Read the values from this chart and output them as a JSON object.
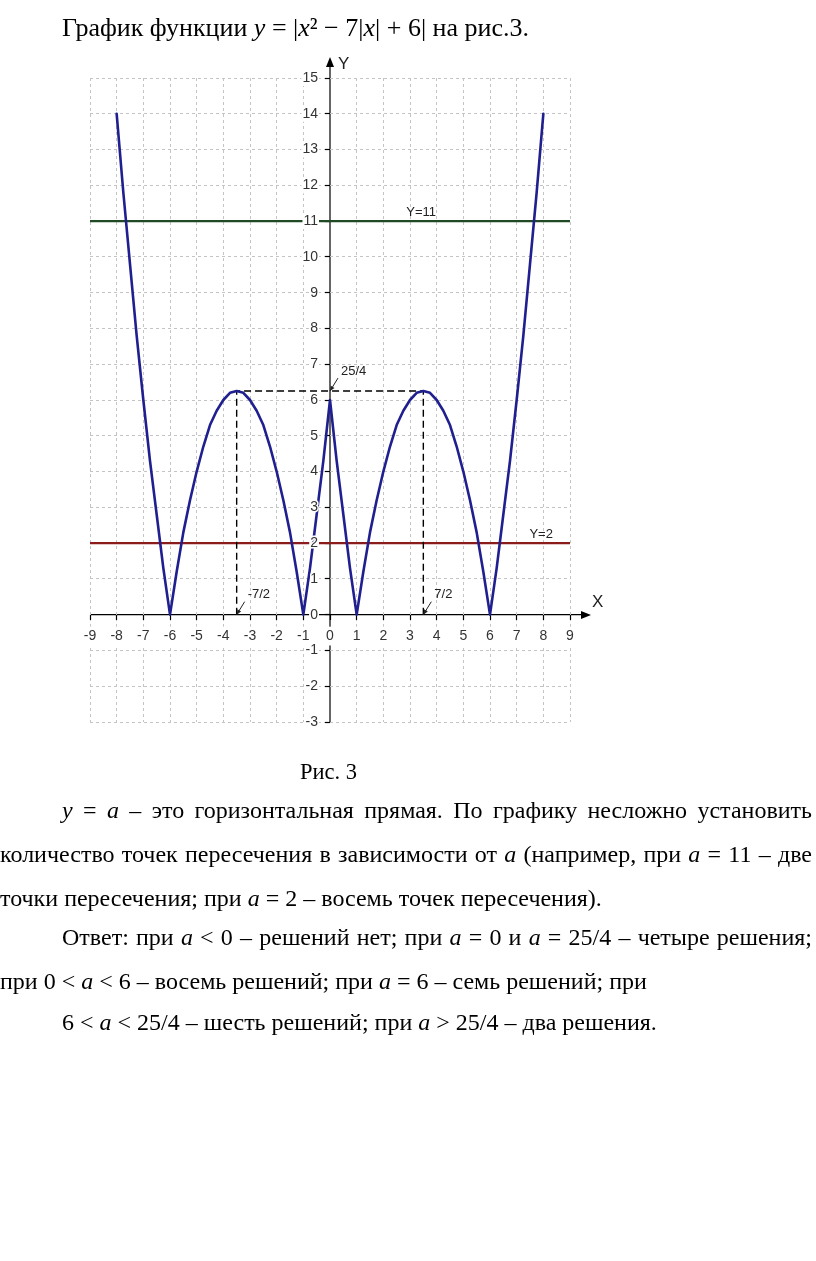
{
  "chart_data": {
    "type": "line",
    "title": "График функции y = |x² − 7|x| + 6| на рис.3.",
    "xlabel": "X",
    "ylabel": "Y",
    "xlim": [
      -9,
      9
    ],
    "xticks": [
      -9,
      -8,
      -7,
      -6,
      -5,
      -4,
      -3,
      -2,
      -1,
      0,
      1,
      2,
      3,
      4,
      5,
      6,
      7,
      8,
      9
    ],
    "ylim": [
      -3,
      15
    ],
    "yticks": [
      -3,
      -2,
      -1,
      0,
      1,
      2,
      3,
      4,
      5,
      6,
      7,
      8,
      9,
      10,
      11,
      12,
      13,
      14,
      15
    ],
    "grid": true,
    "series": [
      {
        "color": "#1f1f8f",
        "x": [
          -8,
          -7.75,
          -7.5,
          -7.25,
          -7,
          -6.75,
          -6.5,
          -6.25,
          -6,
          -5.75,
          -5.5,
          -5.25,
          -5,
          -4.75,
          -4.5,
          -4.25,
          -4,
          -3.75,
          -3.5,
          -3.25,
          -3,
          -2.75,
          -2.5,
          -2.25,
          -2,
          -1.75,
          -1.5,
          -1.25,
          -1,
          -0.75,
          -0.5,
          -0.25,
          0,
          0.25,
          0.5,
          0.75,
          1,
          1.25,
          1.5,
          1.75,
          2,
          2.25,
          2.5,
          2.75,
          3,
          3.25,
          3.5,
          3.75,
          4,
          4.25,
          4.5,
          4.75,
          5,
          5.25,
          5.5,
          5.75,
          6,
          6.25,
          6.5,
          6.75,
          7,
          7.25,
          7.5,
          7.75,
          8
        ],
        "values": [
          14,
          11.8,
          9.8,
          7.8,
          6,
          4.3,
          2.8,
          1.3,
          0,
          1.2,
          2.3,
          3.2,
          4,
          4.7,
          5.3,
          5.7,
          6,
          6.2,
          6.25,
          6.2,
          6,
          5.7,
          5.3,
          4.7,
          4,
          3.2,
          2.3,
          1.2,
          0,
          1.3,
          2.8,
          4.3,
          6,
          4.3,
          2.8,
          1.3,
          0,
          1.2,
          2.3,
          3.2,
          4,
          4.7,
          5.3,
          5.7,
          6,
          6.2,
          6.25,
          6.2,
          6,
          5.7,
          5.3,
          4.7,
          4,
          3.2,
          2.3,
          1.2,
          0,
          1.3,
          2.8,
          4.3,
          6,
          7.8,
          9.8,
          11.8,
          14
        ]
      },
      {
        "type": "line",
        "color": "#000000",
        "line_style": "dashed",
        "x": [
          -3.5,
          -3.5,
          3.5,
          3.5
        ],
        "values": [
          0,
          6.25,
          6.25,
          0
        ]
      }
    ],
    "ref_lines": [
      {
        "axis": "y",
        "value": 11,
        "label": "Y=11",
        "color": "#1f4a24"
      },
      {
        "axis": "y",
        "value": 2,
        "label": "Y=2",
        "color": "#8b1c1c"
      }
    ],
    "annotations": [
      {
        "text": "25/4",
        "x": 0,
        "y": 6.25
      },
      {
        "text": "-7/2",
        "x": -3.5,
        "y": 0
      },
      {
        "text": "7/2",
        "x": 3.5,
        "y": 0
      },
      "Рис. 3",
      "y = a – это горизонтальная прямая. По графику несложно установить количество точек пересечения в зависимости от a (например, при a = 11 – две точки пересечения; при a = 2 – восемь точек пересечения).",
      "Ответ: при a < 0 – решений нет; при a = 0 и a = 25/4 – четыре решения; при 0 < a < 6 – восемь решений; при a = 6 – семь решений; при",
      "6 < a < 25/4 – шесть решений; при a > 25/4 – два решения."
    ]
  }
}
